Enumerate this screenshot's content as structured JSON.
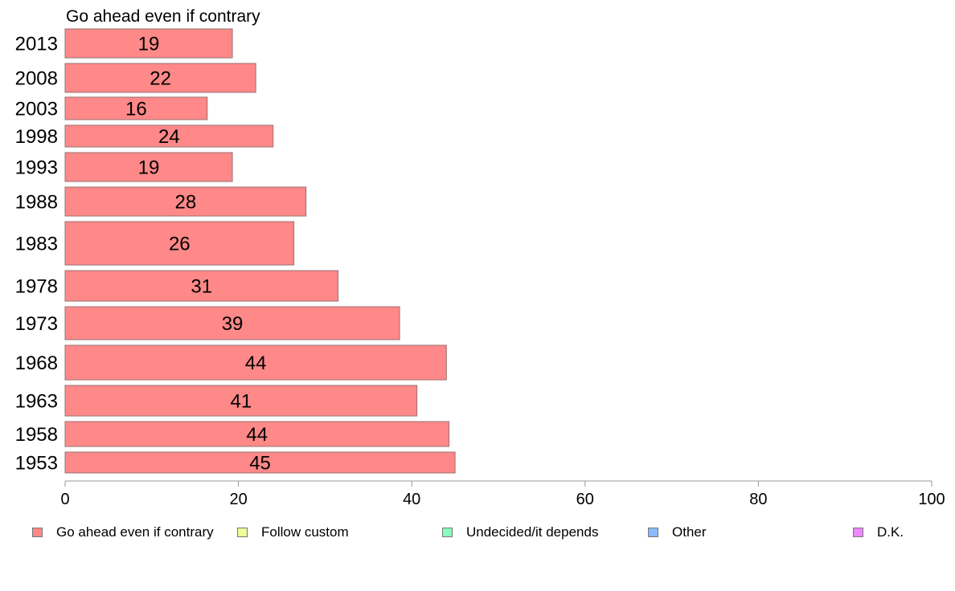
{
  "chart_data": {
    "type": "bar",
    "orientation": "horizontal",
    "title": "Go ahead even if contrary",
    "categories": [
      "2013",
      "2008",
      "2003",
      "1998",
      "1993",
      "1988",
      "1983",
      "1978",
      "1973",
      "1968",
      "1963",
      "1958",
      "1953"
    ],
    "series": [
      {
        "name": "Go ahead even if contrary",
        "color": "#ff8888",
        "values": [
          19,
          22,
          16,
          24,
          19,
          28,
          26,
          31,
          39,
          44,
          41,
          44,
          45
        ],
        "bar_lengths": [
          19.3,
          22.0,
          16.4,
          24.0,
          19.3,
          27.8,
          26.4,
          31.5,
          38.6,
          44.0,
          40.6,
          44.3,
          45.0
        ]
      }
    ],
    "xlim": [
      0,
      100
    ],
    "xticks": [
      "0",
      "20",
      "40",
      "60",
      "80",
      "100"
    ],
    "grid": false,
    "legend": {
      "placement": "bottom",
      "items": [
        {
          "label": "Go ahead even if contrary",
          "color": "#ff8888"
        },
        {
          "label": "Follow custom",
          "color": "#eeff99"
        },
        {
          "label": "Undecided/it depends",
          "color": "#88ffbb"
        },
        {
          "label": "Other",
          "color": "#88bbff"
        },
        {
          "label": "D.K.",
          "color": "#ee88ff"
        }
      ]
    }
  }
}
